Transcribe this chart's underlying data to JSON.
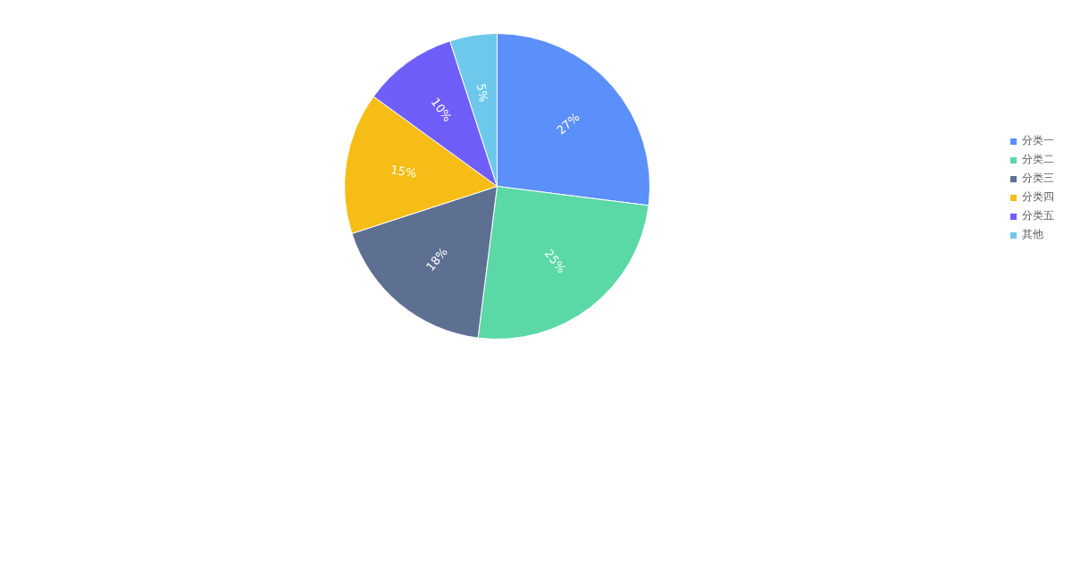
{
  "chart_data": {
    "type": "pie",
    "categories": [
      "分类一",
      "分类二",
      "分类三",
      "分类四",
      "分类五",
      "其他"
    ],
    "values": [
      27,
      25,
      18,
      15,
      10,
      5
    ],
    "colors": [
      "#5b8ff9",
      "#5ad8a6",
      "#5d7092",
      "#f6bd16",
      "#6f5ef9",
      "#6dc8ec"
    ],
    "value_labels": [
      "27%",
      "25%",
      "18%",
      "15%",
      "10%",
      "5%"
    ],
    "legend": "right"
  }
}
